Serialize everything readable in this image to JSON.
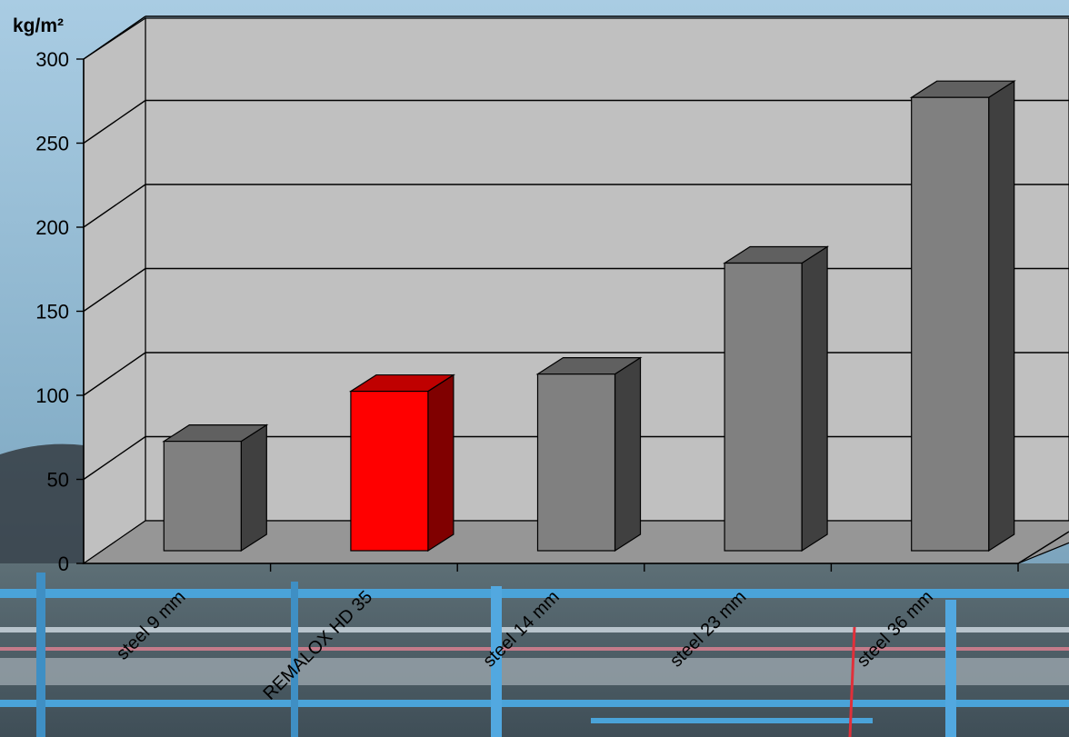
{
  "chart_data": {
    "type": "bar",
    "style": "3d-column",
    "ylabel": "kg/m²",
    "categories": [
      "steel 9 mm",
      "REMALOX HD 35",
      "steel 14 mm",
      "steel 23 mm",
      "steel 36 mm"
    ],
    "values": [
      70,
      102,
      113,
      184,
      290
    ],
    "bar_colors": [
      "#808080",
      "#ff0000",
      "#808080",
      "#808080",
      "#808080"
    ],
    "ylim": [
      0,
      300
    ],
    "yticks": [
      "0",
      "50",
      "100",
      "150",
      "200",
      "250",
      "300"
    ],
    "grid": true,
    "legend": "none"
  },
  "colors": {
    "wall": "#c0c0c0",
    "floor": "#969696",
    "gray_bar": "#808080",
    "highlight_bar": "#ff0000"
  },
  "background": "industrial-conveyor-photo"
}
